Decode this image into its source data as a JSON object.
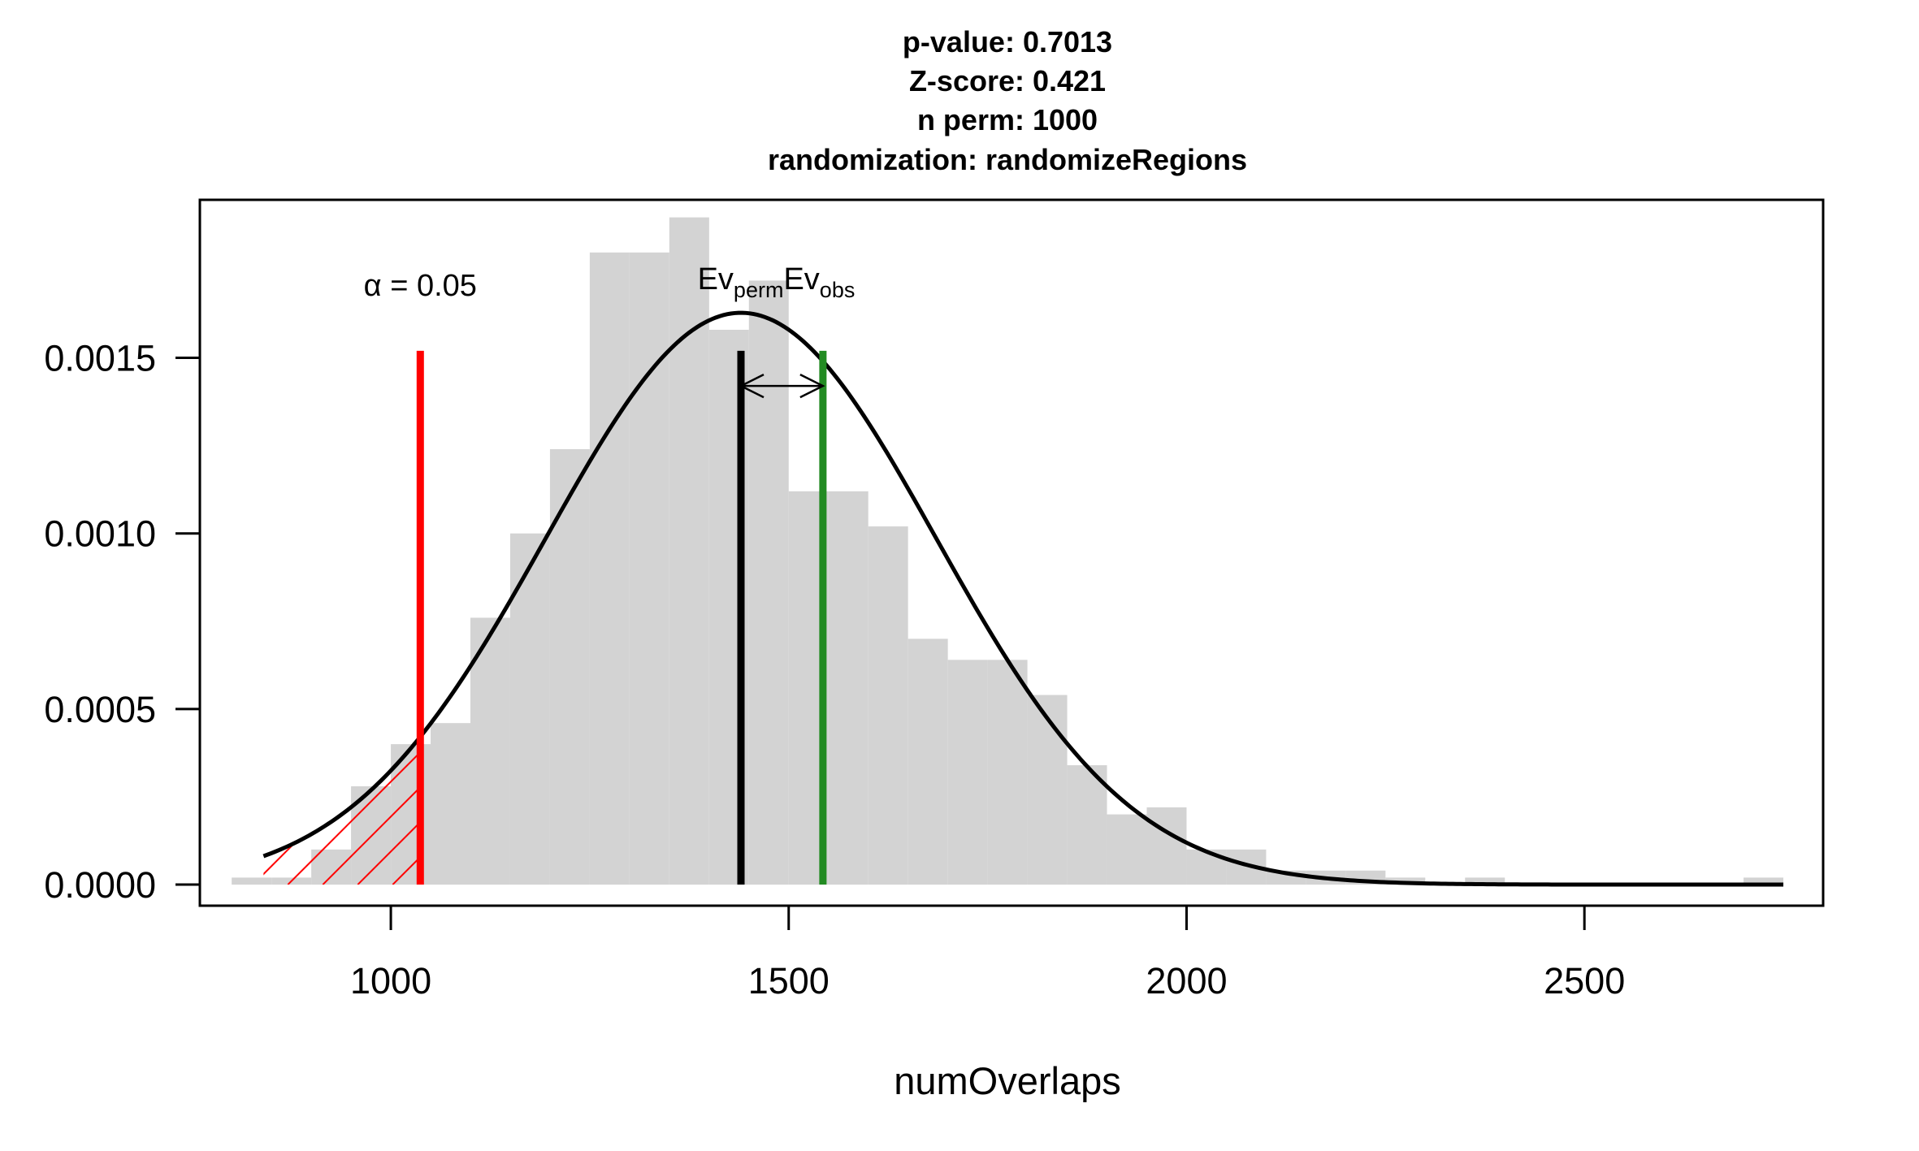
{
  "chart_data": {
    "type": "histogram",
    "title_lines": [
      "p-value:  0.7013",
      "Z-score:  0.421",
      "n perm:  1000",
      "randomization:  randomizeRegions"
    ],
    "xlabel": "numOverlaps",
    "ylabel": "",
    "xlim": [
      760,
      2800
    ],
    "ylim": [
      -6e-05,
      0.00195
    ],
    "x_ticks": [
      1000,
      1500,
      2000,
      2500
    ],
    "x_tick_labels": [
      "1000",
      "1500",
      "2000",
      "2500"
    ],
    "y_ticks": [
      0,
      0.0005,
      0.001,
      0.0015
    ],
    "y_tick_labels": [
      "0.0000",
      "0.0005",
      "0.0010",
      "0.0015"
    ],
    "histogram": {
      "bin_width": 50,
      "color": "#d3d3d3",
      "bins": [
        {
          "x0": 800,
          "density": 2e-05
        },
        {
          "x0": 850,
          "density": 2e-05
        },
        {
          "x0": 900,
          "density": 0.0001
        },
        {
          "x0": 950,
          "density": 0.00028
        },
        {
          "x0": 1000,
          "density": 0.0004
        },
        {
          "x0": 1050,
          "density": 0.00046
        },
        {
          "x0": 1100,
          "density": 0.00076
        },
        {
          "x0": 1150,
          "density": 0.001
        },
        {
          "x0": 1200,
          "density": 0.00124
        },
        {
          "x0": 1250,
          "density": 0.0018
        },
        {
          "x0": 1300,
          "density": 0.0018
        },
        {
          "x0": 1350,
          "density": 0.0019
        },
        {
          "x0": 1400,
          "density": 0.00158
        },
        {
          "x0": 1450,
          "density": 0.00172
        },
        {
          "x0": 1500,
          "density": 0.00112
        },
        {
          "x0": 1550,
          "density": 0.00112
        },
        {
          "x0": 1600,
          "density": 0.00102
        },
        {
          "x0": 1650,
          "density": 0.0007
        },
        {
          "x0": 1700,
          "density": 0.00064
        },
        {
          "x0": 1750,
          "density": 0.00064
        },
        {
          "x0": 1800,
          "density": 0.00054
        },
        {
          "x0": 1850,
          "density": 0.00034
        },
        {
          "x0": 1900,
          "density": 0.0002
        },
        {
          "x0": 1950,
          "density": 0.00022
        },
        {
          "x0": 2000,
          "density": 0.0001
        },
        {
          "x0": 2050,
          "density": 0.0001
        },
        {
          "x0": 2100,
          "density": 4e-05
        },
        {
          "x0": 2150,
          "density": 4e-05
        },
        {
          "x0": 2200,
          "density": 4e-05
        },
        {
          "x0": 2250,
          "density": 2e-05
        },
        {
          "x0": 2300,
          "density": 0
        },
        {
          "x0": 2350,
          "density": 2e-05
        },
        {
          "x0": 2400,
          "density": 0
        },
        {
          "x0": 2450,
          "density": 0
        },
        {
          "x0": 2500,
          "density": 0
        },
        {
          "x0": 2550,
          "density": 0
        },
        {
          "x0": 2600,
          "density": 0
        },
        {
          "x0": 2650,
          "density": 0
        },
        {
          "x0": 2700,
          "density": 2e-05
        }
      ]
    },
    "normal_curve": {
      "mean": 1440,
      "sd": 245,
      "x_range": [
        840,
        2750
      ],
      "color": "#000000"
    },
    "lines": {
      "alpha": {
        "x": 1037,
        "y_top": 0.00152,
        "color": "#ff0000",
        "label_prefix": "α",
        "label_rest": " = 0.05"
      },
      "ev_perm": {
        "x": 1440,
        "y_top": 0.00152,
        "color": "#000000",
        "label_main": "Ev",
        "label_sub": "perm"
      },
      "ev_obs": {
        "x": 1543,
        "y_top": 0.00152,
        "color": "#228b22",
        "label_main": "Ev",
        "label_sub": "obs"
      }
    },
    "arrow_y": 0.00142,
    "shaded_region": {
      "x_from": 840,
      "x_to": 1037,
      "color": "#ff0000"
    }
  }
}
